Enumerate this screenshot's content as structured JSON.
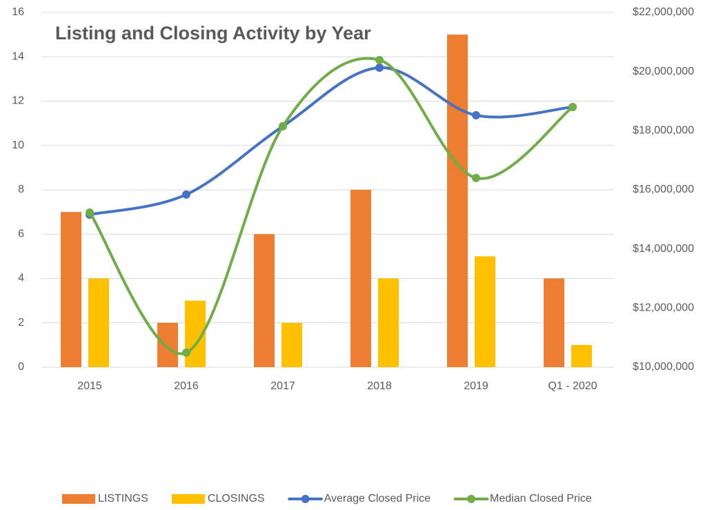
{
  "chart_data": {
    "type": "bar-line",
    "title": "Listing and Closing Activity by Year",
    "categories": [
      "2015",
      "2016",
      "2017",
      "2018",
      "2019",
      "Q1 - 2020"
    ],
    "series": [
      {
        "name": "LISTINGS",
        "type": "bar",
        "color": "#ed7d31",
        "values": [
          7,
          2,
          6,
          8,
          15,
          4
        ]
      },
      {
        "name": "CLOSINGS",
        "type": "bar",
        "color": "#ffc000",
        "values": [
          4,
          3,
          2,
          4,
          5,
          1
        ]
      },
      {
        "name": "Average Closed Price",
        "type": "line",
        "axis": "y2",
        "color": "#4472c4",
        "values": [
          15160000,
          15840000,
          18150000,
          20130000,
          18520000,
          18800000
        ]
      },
      {
        "name": "Median Closed Price",
        "type": "line",
        "axis": "y2",
        "color": "#70ad47",
        "values": [
          15230000,
          10490000,
          18150000,
          20390000,
          16400000,
          18800000
        ]
      }
    ],
    "ylim": [
      0,
      16
    ],
    "yticks": [
      0,
      2,
      4,
      6,
      8,
      10,
      12,
      14,
      16
    ],
    "y2lim": [
      10000000,
      22000000
    ],
    "y2ticks": [
      {
        "value": 10000000,
        "label": "$10,000,000"
      },
      {
        "value": 12000000,
        "label": "$12,000,000"
      },
      {
        "value": 14000000,
        "label": "$14,000,000"
      },
      {
        "value": 16000000,
        "label": "$16,000,000"
      },
      {
        "value": 18000000,
        "label": "$18,000,000"
      },
      {
        "value": 20000000,
        "label": "$20,000,000"
      },
      {
        "value": 22000000,
        "label": "$22,000,000"
      }
    ],
    "grid": true,
    "legend": "bottom",
    "smooth": true
  }
}
